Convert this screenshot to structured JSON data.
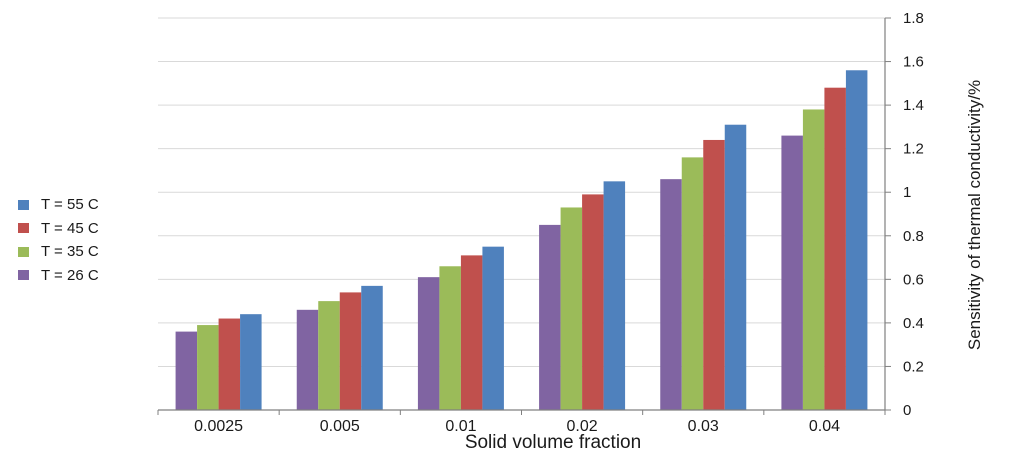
{
  "chart_data": {
    "type": "bar",
    "categories": [
      "0.0025",
      "0.005",
      "0.01",
      "0.02",
      "0.03",
      "0.04"
    ],
    "series": [
      {
        "name": "T = 26 C",
        "color": "#8064A2",
        "values": [
          0.36,
          0.46,
          0.61,
          0.85,
          1.06,
          1.26
        ]
      },
      {
        "name": "T = 35 C",
        "color": "#9BBB59",
        "values": [
          0.39,
          0.5,
          0.66,
          0.93,
          1.16,
          1.38
        ]
      },
      {
        "name": "T = 45 C",
        "color": "#C0504D",
        "values": [
          0.42,
          0.54,
          0.71,
          0.99,
          1.24,
          1.48
        ]
      },
      {
        "name": "T = 55 C",
        "color": "#4F81BD",
        "values": [
          0.44,
          0.57,
          0.75,
          1.05,
          1.31,
          1.56
        ]
      }
    ],
    "legend_order": [
      "T = 55 C",
      "T = 45 C",
      "T = 35 C",
      "T = 26 C"
    ],
    "xlabel": "Solid volume fraction",
    "ylabel": "Sensitivity of thermal conductivity/%",
    "ylim": [
      0,
      1.8
    ],
    "yticks": [
      "0",
      "0.2",
      "0.4",
      "0.6",
      "0.8",
      "1",
      "1.2",
      "1.4",
      "1.6",
      "1.8"
    ],
    "grid": true,
    "legend_position": "left"
  }
}
